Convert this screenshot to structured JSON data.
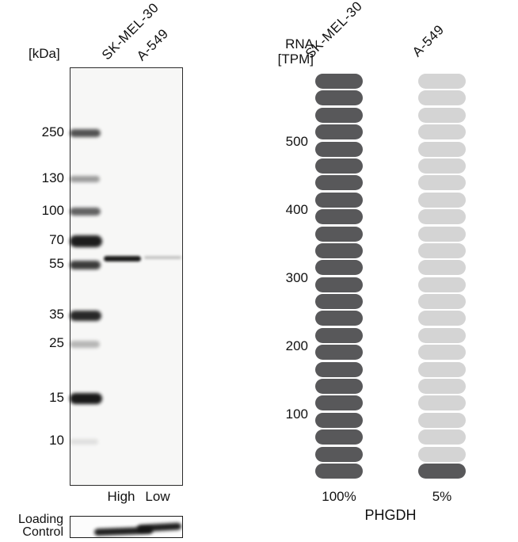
{
  "western_blot": {
    "unit_label": "[kDa]",
    "lanes": [
      {
        "name": "SK-MEL-30",
        "level": "High"
      },
      {
        "name": "A-549",
        "level": "Low"
      }
    ],
    "markers": [
      {
        "kda": "250",
        "y": 167,
        "band_h": 10,
        "band_w": 39,
        "band_opacity": 0.72
      },
      {
        "kda": "130",
        "y": 225,
        "band_h": 8,
        "band_w": 38,
        "band_opacity": 0.4
      },
      {
        "kda": "100",
        "y": 266,
        "band_h": 10,
        "band_w": 39,
        "band_opacity": 0.65
      },
      {
        "kda": "70",
        "y": 303,
        "band_h": 15,
        "band_w": 41,
        "band_opacity": 0.95
      },
      {
        "kda": "55",
        "y": 333,
        "band_h": 11,
        "band_w": 39,
        "band_opacity": 0.82
      },
      {
        "kda": "35",
        "y": 397,
        "band_h": 13,
        "band_w": 40,
        "band_opacity": 0.9
      },
      {
        "kda": "25",
        "y": 433,
        "band_h": 9,
        "band_w": 38,
        "band_opacity": 0.28
      },
      {
        "kda": "15",
        "y": 502,
        "band_h": 14,
        "band_w": 41,
        "band_opacity": 0.97
      },
      {
        "kda": "10",
        "y": 556,
        "band_h": 7,
        "band_w": 36,
        "band_opacity": 0.1
      }
    ],
    "sample_bands": [
      {
        "lane": "SK-MEL-30",
        "x": 42,
        "y_center": 325,
        "w": 47,
        "h": 7,
        "opacity": 0.95
      },
      {
        "lane": "A-549",
        "x": 93,
        "y_center": 324,
        "w": 47,
        "h": 4,
        "opacity": 0.22
      }
    ],
    "loading_control": {
      "label_line1": "Loading",
      "label_line2": "Control"
    }
  },
  "rna_chart": {
    "axis_label_line1": "RNA",
    "axis_label_line2": "[TPM]",
    "ticks": [
      {
        "value": "500",
        "y": 179
      },
      {
        "value": "400",
        "y": 265
      },
      {
        "value": "300",
        "y": 351
      },
      {
        "value": "200",
        "y": 437
      },
      {
        "value": "100",
        "y": 523
      }
    ],
    "columns": [
      {
        "name": "SK-MEL-30",
        "percent_label": "100%",
        "total_segments": 24,
        "dark_segments": 24
      },
      {
        "name": "A-549",
        "percent_label": "5%",
        "total_segments": 24,
        "dark_segments": 1
      }
    ],
    "colors": {
      "dark": "#58585a",
      "light": "#d4d4d4"
    },
    "gene": "PHGDH"
  },
  "chart_data": {
    "type": "bar",
    "title": "PHGDH",
    "categories": [
      "SK-MEL-30",
      "A-549"
    ],
    "series": [
      {
        "name": "RNA [TPM]",
        "values": [
          600,
          30
        ]
      }
    ],
    "percent_of_max": [
      "100%",
      "5%"
    ],
    "ylabel": "RNA [TPM]",
    "ylim": [
      0,
      600
    ],
    "yticks": [
      100,
      200,
      300,
      400,
      500
    ],
    "segment_value_tpm": 25,
    "segments_per_column": 24,
    "grid": false,
    "legend_position": "none",
    "western_blot": {
      "ladder_kda": [
        250,
        130,
        100,
        70,
        55,
        35,
        25,
        15,
        10
      ],
      "lanes": [
        {
          "name": "SK-MEL-30",
          "expression": "High",
          "band_intensity": "strong"
        },
        {
          "name": "A-549",
          "expression": "Low",
          "band_intensity": "faint"
        }
      ],
      "loading_control": "present"
    }
  }
}
